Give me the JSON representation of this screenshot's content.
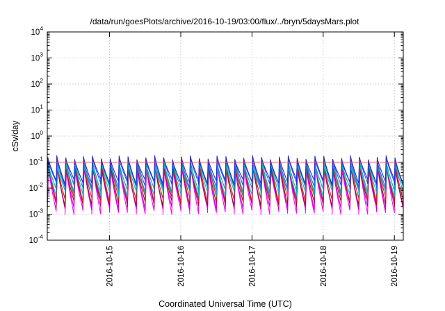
{
  "chart_data": {
    "type": "line",
    "title": "/data/run/goesPlots/archive/2016-10-19/03:00/flux/../bryn/5daysMars.plot",
    "xlabel": "Coordinated Universal Time (UTC)",
    "ylabel": "cSv/day",
    "y_scale": "log",
    "ylim": [
      0.0001,
      10000
    ],
    "xlim": [
      "2016-10-14T03:00",
      "2016-10-19T03:00"
    ],
    "y_ticks": [
      {
        "base": "10",
        "exp": "-4"
      },
      {
        "base": "10",
        "exp": "-3"
      },
      {
        "base": "10",
        "exp": "-2"
      },
      {
        "base": "10",
        "exp": "-1"
      },
      {
        "base": "10",
        "exp": "0"
      },
      {
        "base": "10",
        "exp": "1"
      },
      {
        "base": "10",
        "exp": "2"
      },
      {
        "base": "10",
        "exp": "3"
      },
      {
        "base": "10",
        "exp": "4"
      }
    ],
    "x_ticks": [
      "2016-10-15",
      "2016-10-16",
      "2016-10-17",
      "2016-10-18",
      "2016-10-19"
    ],
    "grid": true,
    "legend": "none",
    "cycle_hours": 3,
    "cycle_start": "2016-10-14T03:00",
    "series": [
      {
        "color": "#ff00ff",
        "peak": 0.055,
        "floor": 0.0013,
        "peak_hours": 0.45
      },
      {
        "color": "#cc00cc",
        "peak": 0.06,
        "floor": 0.0019,
        "peak_hours": 0.4
      },
      {
        "color": "#8b1a1a",
        "peak": 0.07,
        "floor": 0.0026,
        "peak_hours": 0.35
      },
      {
        "color": "#d42020",
        "peak": 0.095,
        "floor": 0.0038,
        "peak_hours": 0.3
      },
      {
        "color": "#00bcd4",
        "peak": 0.08,
        "floor": 0.0065,
        "peak_hours": 0.35
      },
      {
        "color": "#1a9a9a",
        "peak": 0.1,
        "floor": 0.009,
        "peak_hours": 0.3
      },
      {
        "color": "#3050ff",
        "peak": 0.13,
        "floor": 0.014,
        "peak_hours": 0.25
      },
      {
        "color": "#1e2ed0",
        "peak": 0.15,
        "floor": 0.018,
        "peak_hours": 0.2
      }
    ],
    "reference_line": {
      "color": "#ff4040",
      "y": 0.1
    }
  }
}
